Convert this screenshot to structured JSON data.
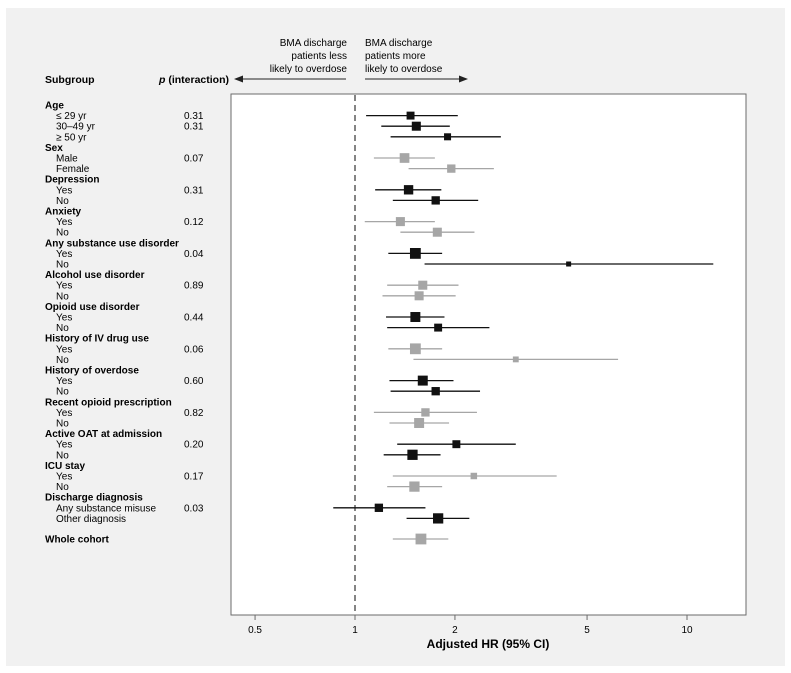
{
  "chart_data": {
    "type": "forest",
    "xlabel": "Adjusted HR (95% CI)",
    "x_scale": "log",
    "xlim": [
      0.4,
      14
    ],
    "xticks": [
      0.5,
      1,
      2,
      5,
      10
    ],
    "xtick_labels": [
      "0.5",
      "1",
      "2",
      "5",
      "10"
    ],
    "reference_line": 1,
    "column_headers": {
      "subgroup": "Subgroup",
      "p": "p",
      "p_suffix": " (interaction)"
    },
    "annotation_left": [
      "BMA discharge",
      "patients less",
      "likely to overdose"
    ],
    "annotation_right": [
      "BMA discharge",
      "patients more",
      "likely to overdose"
    ],
    "rows": [
      {
        "kind": "group",
        "label": "Age",
        "p": ""
      },
      {
        "kind": "sub",
        "label": "≤ 29 yr",
        "p": "0.31",
        "hr": 1.47,
        "lo": 1.08,
        "hi": 2.04,
        "w": 0.3,
        "color": "#111111"
      },
      {
        "kind": "sub",
        "label": "30–49 yr",
        "p": "0.31",
        "hr": 1.53,
        "lo": 1.2,
        "hi": 1.93,
        "w": 0.45,
        "color": "#111111"
      },
      {
        "kind": "sub",
        "label": "≥ 50 yr",
        "p": "",
        "hr": 1.9,
        "lo": 1.28,
        "hi": 2.75,
        "w": 0.2,
        "color": "#111111"
      },
      {
        "kind": "group",
        "label": "Sex",
        "p": ""
      },
      {
        "kind": "sub",
        "label": "Male",
        "p": "0.07",
        "hr": 1.41,
        "lo": 1.14,
        "hi": 1.74,
        "w": 0.55,
        "color": "#a6a6a6"
      },
      {
        "kind": "sub",
        "label": "Female",
        "p": "",
        "hr": 1.95,
        "lo": 1.45,
        "hi": 2.62,
        "w": 0.35,
        "color": "#a6a6a6"
      },
      {
        "kind": "group",
        "label": "Depression",
        "p": ""
      },
      {
        "kind": "sub",
        "label": "Yes",
        "p": "0.31",
        "hr": 1.45,
        "lo": 1.15,
        "hi": 1.82,
        "w": 0.5,
        "color": "#111111"
      },
      {
        "kind": "sub",
        "label": "No",
        "p": "",
        "hr": 1.75,
        "lo": 1.3,
        "hi": 2.35,
        "w": 0.35,
        "color": "#111111"
      },
      {
        "kind": "group",
        "label": "Anxiety",
        "p": ""
      },
      {
        "kind": "sub",
        "label": "Yes",
        "p": "0.12",
        "hr": 1.37,
        "lo": 1.07,
        "hi": 1.74,
        "w": 0.45,
        "color": "#a6a6a6"
      },
      {
        "kind": "sub",
        "label": "No",
        "p": "",
        "hr": 1.77,
        "lo": 1.37,
        "hi": 2.29,
        "w": 0.45,
        "color": "#a6a6a6"
      },
      {
        "kind": "group",
        "label": "Any substance use disorder",
        "p": ""
      },
      {
        "kind": "sub",
        "label": "Yes",
        "p": "0.04",
        "hr": 1.52,
        "lo": 1.26,
        "hi": 1.83,
        "w": 0.75,
        "color": "#111111"
      },
      {
        "kind": "sub",
        "label": "No",
        "p": "",
        "hr": 4.4,
        "lo": 1.62,
        "hi": 12.0,
        "w": 0.05,
        "color": "#111111"
      },
      {
        "kind": "group",
        "label": "Alcohol use disorder",
        "p": ""
      },
      {
        "kind": "sub",
        "label": "Yes",
        "p": "0.89",
        "hr": 1.6,
        "lo": 1.25,
        "hi": 2.05,
        "w": 0.45,
        "color": "#a6a6a6"
      },
      {
        "kind": "sub",
        "label": "No",
        "p": "",
        "hr": 1.56,
        "lo": 1.21,
        "hi": 2.01,
        "w": 0.45,
        "color": "#a6a6a6"
      },
      {
        "kind": "group",
        "label": "Opioid use disorder",
        "p": ""
      },
      {
        "kind": "sub",
        "label": "Yes",
        "p": "0.44",
        "hr": 1.52,
        "lo": 1.24,
        "hi": 1.86,
        "w": 0.6,
        "color": "#111111"
      },
      {
        "kind": "sub",
        "label": "No",
        "p": "",
        "hr": 1.78,
        "lo": 1.25,
        "hi": 2.54,
        "w": 0.3,
        "color": "#111111"
      },
      {
        "kind": "group",
        "label": "History of IV drug use",
        "p": ""
      },
      {
        "kind": "sub",
        "label": "Yes",
        "p": "0.06",
        "hr": 1.52,
        "lo": 1.26,
        "hi": 1.83,
        "w": 0.75,
        "color": "#a6a6a6"
      },
      {
        "kind": "sub",
        "label": "No",
        "p": "",
        "hr": 3.05,
        "lo": 1.5,
        "hi": 6.2,
        "w": 0.1,
        "color": "#a6a6a6"
      },
      {
        "kind": "group",
        "label": "History of overdose",
        "p": ""
      },
      {
        "kind": "sub",
        "label": "Yes",
        "p": "0.60",
        "hr": 1.6,
        "lo": 1.27,
        "hi": 1.98,
        "w": 0.6,
        "color": "#111111"
      },
      {
        "kind": "sub",
        "label": "No",
        "p": "",
        "hr": 1.75,
        "lo": 1.28,
        "hi": 2.38,
        "w": 0.35,
        "color": "#111111"
      },
      {
        "kind": "group",
        "label": "Recent opioid prescription",
        "p": ""
      },
      {
        "kind": "sub",
        "label": "Yes",
        "p": "0.82",
        "hr": 1.63,
        "lo": 1.14,
        "hi": 2.33,
        "w": 0.35,
        "color": "#a6a6a6"
      },
      {
        "kind": "sub",
        "label": "No",
        "p": "",
        "hr": 1.56,
        "lo": 1.27,
        "hi": 1.92,
        "w": 0.6,
        "color": "#a6a6a6"
      },
      {
        "kind": "group",
        "label": "Active OAT at admission",
        "p": ""
      },
      {
        "kind": "sub",
        "label": "Yes",
        "p": "0.20",
        "hr": 2.02,
        "lo": 1.34,
        "hi": 3.05,
        "w": 0.3,
        "color": "#111111"
      },
      {
        "kind": "sub",
        "label": "No",
        "p": "",
        "hr": 1.49,
        "lo": 1.22,
        "hi": 1.81,
        "w": 0.65,
        "color": "#111111"
      },
      {
        "kind": "group",
        "label": "ICU stay",
        "p": ""
      },
      {
        "kind": "sub",
        "label": "Yes",
        "p": "0.17",
        "hr": 2.28,
        "lo": 1.3,
        "hi": 4.05,
        "w": 0.15,
        "color": "#a6a6a6"
      },
      {
        "kind": "sub",
        "label": "No",
        "p": "",
        "hr": 1.51,
        "lo": 1.25,
        "hi": 1.83,
        "w": 0.65,
        "color": "#a6a6a6"
      },
      {
        "kind": "group",
        "label": "Discharge diagnosis",
        "p": ""
      },
      {
        "kind": "sub",
        "label": "Any substance misuse",
        "p": "0.03",
        "hr": 1.18,
        "lo": 0.86,
        "hi": 1.63,
        "w": 0.35,
        "color": "#111111"
      },
      {
        "kind": "sub",
        "label": "Other diagnosis",
        "p": "",
        "hr": 1.78,
        "lo": 1.43,
        "hi": 2.21,
        "w": 0.65,
        "color": "#111111"
      },
      {
        "kind": "group",
        "label": "Whole cohort",
        "p": "",
        "hr": 1.58,
        "lo": 1.3,
        "hi": 1.91,
        "w": 0.75,
        "color": "#a6a6a6",
        "spacer_before": true
      }
    ]
  }
}
